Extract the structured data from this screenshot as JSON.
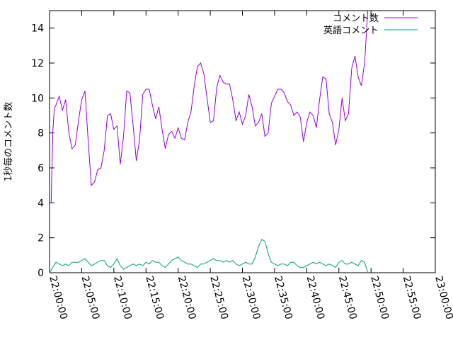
{
  "chart_data": {
    "type": "line",
    "title": "",
    "xlabel": "",
    "ylabel": "1秒毎のコメント数",
    "ylim": [
      0,
      15
    ],
    "y_ticks": [
      0,
      2,
      4,
      6,
      8,
      10,
      12,
      14
    ],
    "x_range_minutes": [
      0,
      60
    ],
    "x_ticks": [
      {
        "minute": 0,
        "label": "22:00:00"
      },
      {
        "minute": 5,
        "label": "22:05:00"
      },
      {
        "minute": 10,
        "label": "22:10:00"
      },
      {
        "minute": 15,
        "label": "22:15:00"
      },
      {
        "minute": 20,
        "label": "22:20:00"
      },
      {
        "minute": 25,
        "label": "22:25:00"
      },
      {
        "minute": 30,
        "label": "22:30:00"
      },
      {
        "minute": 35,
        "label": "22:35:00"
      },
      {
        "minute": 40,
        "label": "22:40:00"
      },
      {
        "minute": 45,
        "label": "22:45:00"
      },
      {
        "minute": 50,
        "label": "22:50:00"
      },
      {
        "minute": 55,
        "label": "22:55:00"
      },
      {
        "minute": 60,
        "label": "23:00:00"
      }
    ],
    "grid": false,
    "legend_position": "top-right",
    "series": [
      {
        "name": "コメント数",
        "color": "#9400d3",
        "points": [
          [
            0,
            4.0
          ],
          [
            0.25,
            4.0
          ],
          [
            0.5,
            8.0
          ],
          [
            0.75,
            9.4
          ],
          [
            1.0,
            9.6
          ],
          [
            1.5,
            10.1
          ],
          [
            2.0,
            9.3
          ],
          [
            2.5,
            9.9
          ],
          [
            3.0,
            8.0
          ],
          [
            3.5,
            7.1
          ],
          [
            4.0,
            7.3
          ],
          [
            4.5,
            8.7
          ],
          [
            5.0,
            9.9
          ],
          [
            5.5,
            10.4
          ],
          [
            6.0,
            7.6
          ],
          [
            6.5,
            5.0
          ],
          [
            7.0,
            5.2
          ],
          [
            7.5,
            5.9
          ],
          [
            8.0,
            6.0
          ],
          [
            8.5,
            7.0
          ],
          [
            9.0,
            9.0
          ],
          [
            9.5,
            9.1
          ],
          [
            10.0,
            8.2
          ],
          [
            10.5,
            8.4
          ],
          [
            11.0,
            6.2
          ],
          [
            11.5,
            7.8
          ],
          [
            12.0,
            10.4
          ],
          [
            12.5,
            10.3
          ],
          [
            13.0,
            8.4
          ],
          [
            13.5,
            6.4
          ],
          [
            14.0,
            7.6
          ],
          [
            14.5,
            10.2
          ],
          [
            15.0,
            10.5
          ],
          [
            15.5,
            10.5
          ],
          [
            16.0,
            9.6
          ],
          [
            16.5,
            8.8
          ],
          [
            17.0,
            9.5
          ],
          [
            17.5,
            8.2
          ],
          [
            18.0,
            7.1
          ],
          [
            18.5,
            7.9
          ],
          [
            19.0,
            8.1
          ],
          [
            19.5,
            7.7
          ],
          [
            20.0,
            8.3
          ],
          [
            20.5,
            7.7
          ],
          [
            21.0,
            7.6
          ],
          [
            21.5,
            8.6
          ],
          [
            22.0,
            9.2
          ],
          [
            22.5,
            10.7
          ],
          [
            23.0,
            11.8
          ],
          [
            23.5,
            12.0
          ],
          [
            24.0,
            11.4
          ],
          [
            24.5,
            10.0
          ],
          [
            25.0,
            8.6
          ],
          [
            25.5,
            8.7
          ],
          [
            26.0,
            10.6
          ],
          [
            26.5,
            11.3
          ],
          [
            27.0,
            10.9
          ],
          [
            27.5,
            10.8
          ],
          [
            28.0,
            10.8
          ],
          [
            28.5,
            9.9
          ],
          [
            29.0,
            8.7
          ],
          [
            29.5,
            9.2
          ],
          [
            30.0,
            8.5
          ],
          [
            30.5,
            9.0
          ],
          [
            31.0,
            10.2
          ],
          [
            31.5,
            9.5
          ],
          [
            32.0,
            8.4
          ],
          [
            32.5,
            8.6
          ],
          [
            33.0,
            9.1
          ],
          [
            33.5,
            7.8
          ],
          [
            34.0,
            8.0
          ],
          [
            34.5,
            9.7
          ],
          [
            35.0,
            10.1
          ],
          [
            35.5,
            10.5
          ],
          [
            36.0,
            10.5
          ],
          [
            36.5,
            10.3
          ],
          [
            37.0,
            9.8
          ],
          [
            37.5,
            9.6
          ],
          [
            38.0,
            9.0
          ],
          [
            38.5,
            9.2
          ],
          [
            39.0,
            8.9
          ],
          [
            39.5,
            7.5
          ],
          [
            40.0,
            8.6
          ],
          [
            40.5,
            9.2
          ],
          [
            41.0,
            9.0
          ],
          [
            41.5,
            8.3
          ],
          [
            42.0,
            9.9
          ],
          [
            42.5,
            11.2
          ],
          [
            43.0,
            11.1
          ],
          [
            43.5,
            9.1
          ],
          [
            44.0,
            8.6
          ],
          [
            44.5,
            7.3
          ],
          [
            45.0,
            8.2
          ],
          [
            45.5,
            10.0
          ],
          [
            46.0,
            8.7
          ],
          [
            46.5,
            9.1
          ],
          [
            47.0,
            11.7
          ],
          [
            47.5,
            12.4
          ],
          [
            48.0,
            11.2
          ],
          [
            48.5,
            10.7
          ],
          [
            49.0,
            12.0
          ],
          [
            49.5,
            15.0
          ]
        ]
      },
      {
        "name": "英語コメント",
        "color": "#009e73",
        "points": [
          [
            0,
            0.0
          ],
          [
            0.5,
            0.3
          ],
          [
            1.0,
            0.6
          ],
          [
            1.5,
            0.5
          ],
          [
            2.0,
            0.4
          ],
          [
            2.5,
            0.5
          ],
          [
            3.0,
            0.4
          ],
          [
            3.5,
            0.6
          ],
          [
            4.0,
            0.6
          ],
          [
            4.5,
            0.6
          ],
          [
            5.0,
            0.7
          ],
          [
            5.5,
            0.8
          ],
          [
            6.0,
            0.6
          ],
          [
            6.5,
            0.4
          ],
          [
            7.0,
            0.5
          ],
          [
            7.5,
            0.6
          ],
          [
            8.0,
            0.7
          ],
          [
            8.5,
            0.7
          ],
          [
            9.0,
            0.4
          ],
          [
            9.5,
            0.3
          ],
          [
            10.0,
            0.5
          ],
          [
            10.5,
            0.8
          ],
          [
            11.0,
            0.4
          ],
          [
            11.5,
            0.2
          ],
          [
            12.0,
            0.3
          ],
          [
            12.5,
            0.4
          ],
          [
            13.0,
            0.5
          ],
          [
            13.5,
            0.4
          ],
          [
            14.0,
            0.5
          ],
          [
            14.5,
            0.4
          ],
          [
            15.0,
            0.6
          ],
          [
            15.5,
            0.5
          ],
          [
            16.0,
            0.7
          ],
          [
            16.5,
            0.6
          ],
          [
            17.0,
            0.6
          ],
          [
            17.5,
            0.4
          ],
          [
            18.0,
            0.3
          ],
          [
            18.5,
            0.5
          ],
          [
            19.0,
            0.7
          ],
          [
            19.5,
            0.8
          ],
          [
            20.0,
            0.9
          ],
          [
            20.5,
            0.7
          ],
          [
            21.0,
            0.6
          ],
          [
            21.5,
            0.5
          ],
          [
            22.0,
            0.5
          ],
          [
            22.5,
            0.4
          ],
          [
            23.0,
            0.3
          ],
          [
            23.5,
            0.5
          ],
          [
            24.0,
            0.5
          ],
          [
            24.5,
            0.6
          ],
          [
            25.0,
            0.7
          ],
          [
            25.5,
            0.8
          ],
          [
            26.0,
            0.7
          ],
          [
            26.5,
            0.7
          ],
          [
            27.0,
            0.6
          ],
          [
            27.5,
            0.7
          ],
          [
            28.0,
            0.6
          ],
          [
            28.5,
            0.7
          ],
          [
            29.0,
            0.5
          ],
          [
            29.5,
            0.4
          ],
          [
            30.0,
            0.5
          ],
          [
            30.5,
            0.6
          ],
          [
            31.0,
            0.5
          ],
          [
            31.5,
            0.5
          ],
          [
            32.0,
            0.9
          ],
          [
            32.5,
            1.5
          ],
          [
            33.0,
            1.9
          ],
          [
            33.5,
            1.8
          ],
          [
            34.0,
            1.1
          ],
          [
            34.5,
            0.6
          ],
          [
            35.0,
            0.5
          ],
          [
            35.5,
            0.4
          ],
          [
            36.0,
            0.5
          ],
          [
            36.5,
            0.5
          ],
          [
            37.0,
            0.4
          ],
          [
            37.5,
            0.6
          ],
          [
            38.0,
            0.6
          ],
          [
            38.5,
            0.4
          ],
          [
            39.0,
            0.3
          ],
          [
            39.5,
            0.3
          ],
          [
            40.0,
            0.4
          ],
          [
            40.5,
            0.5
          ],
          [
            41.0,
            0.6
          ],
          [
            41.5,
            0.5
          ],
          [
            42.0,
            0.6
          ],
          [
            42.5,
            0.5
          ],
          [
            43.0,
            0.4
          ],
          [
            43.5,
            0.5
          ],
          [
            44.0,
            0.4
          ],
          [
            44.5,
            0.3
          ],
          [
            45.0,
            0.6
          ],
          [
            45.5,
            0.7
          ],
          [
            46.0,
            0.5
          ],
          [
            46.5,
            0.5
          ],
          [
            47.0,
            0.6
          ],
          [
            47.5,
            0.5
          ],
          [
            48.0,
            0.4
          ],
          [
            48.5,
            0.7
          ],
          [
            49.0,
            0.6
          ],
          [
            49.5,
            0.0
          ]
        ]
      }
    ]
  }
}
